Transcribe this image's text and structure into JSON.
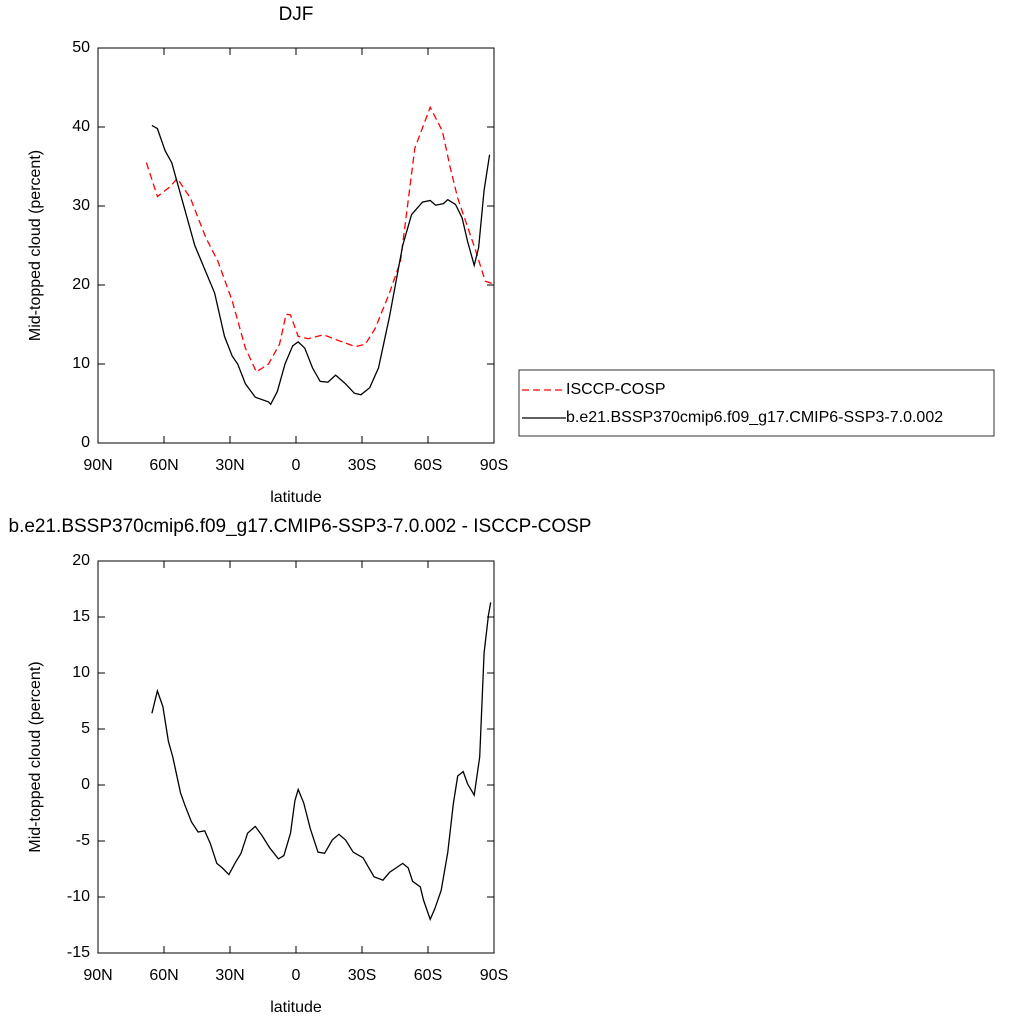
{
  "chart_data": [
    {
      "type": "line",
      "title": "DJF",
      "xlabel": "latitude",
      "ylabel": "Mid-topped cloud (percent)",
      "xlim": [
        90,
        -90
      ],
      "xticks": [
        {
          "value": 90,
          "label": "90N"
        },
        {
          "value": 60,
          "label": "60N"
        },
        {
          "value": 30,
          "label": "30N"
        },
        0,
        {
          "value": -30,
          "label": "30S"
        },
        {
          "value": -60,
          "label": "60S"
        },
        {
          "value": -90,
          "label": "90S"
        }
      ],
      "ylim": [
        0,
        50
      ],
      "yticks": [
        0,
        10,
        20,
        30,
        40,
        50
      ],
      "legend": "right",
      "series": [
        {
          "name": "ISCCP-COSP",
          "color": "#ff0000",
          "linestyle": "dashed",
          "x": [
            68,
            63,
            57,
            54,
            48,
            41,
            35.5,
            29,
            23,
            18,
            12.5,
            7.5,
            4.5,
            2.5,
            -1,
            -5.5,
            -12.5,
            -19,
            -27,
            -31.5,
            -36,
            -42.5,
            -47.5,
            -54,
            -61,
            -66.5,
            -70,
            -73.5,
            -81.5,
            -86,
            -89
          ],
          "values": [
            35.5,
            31.2,
            32.5,
            33.5,
            31,
            26,
            23,
            18,
            12,
            9,
            10,
            12.5,
            16.3,
            16.2,
            13.5,
            13.2,
            13.7,
            13,
            12.2,
            12.5,
            14.5,
            19,
            23,
            37.3,
            42.5,
            39.5,
            35,
            31,
            24.5,
            20.5,
            20.2
          ]
        },
        {
          "name": "b.e21.BSSP370cmip6.f09_g17.CMIP6-SSP3-7.0.002",
          "color": "#000000",
          "linestyle": "solid",
          "x": [
            65.5,
            63,
            59.5,
            56.5,
            52,
            46,
            41.5,
            37,
            32.5,
            29,
            26.5,
            23,
            18.5,
            12.5,
            11.5,
            8.5,
            5,
            1.5,
            -1,
            -4,
            -7.5,
            -11,
            -14.5,
            -18,
            -22.5,
            -26.5,
            -29.5,
            -33.5,
            -37.5,
            -42.5,
            -48.5,
            -52.5,
            -57.5,
            -61,
            -63.5,
            -67,
            -69,
            -72.5,
            -75.5,
            -78,
            -81,
            -83,
            -85.5,
            -88
          ],
          "values": [
            40.2,
            39.8,
            37,
            35.5,
            31,
            25,
            22,
            19,
            13.5,
            11,
            10,
            7.5,
            5.8,
            5.2,
            4.9,
            6.5,
            10,
            12.3,
            12.8,
            12,
            9.5,
            7.8,
            7.7,
            8.6,
            7.5,
            6.3,
            6.1,
            7,
            9.5,
            16,
            25,
            28.9,
            30.5,
            30.7,
            30.1,
            30.3,
            30.8,
            30.2,
            28.5,
            25.5,
            22.5,
            24.7,
            32,
            36.5
          ]
        }
      ]
    },
    {
      "type": "line",
      "title": "b.e21.BSSP370cmip6.f09_g17.CMIP6-SSP3-7.0.002 - ISCCP-COSP",
      "xlabel": "latitude",
      "ylabel": "Mid-topped cloud (percent)",
      "xlim": [
        90,
        -90
      ],
      "xticks": [
        {
          "value": 90,
          "label": "90N"
        },
        {
          "value": 60,
          "label": "60N"
        },
        {
          "value": 30,
          "label": "30N"
        },
        0,
        {
          "value": -30,
          "label": "30S"
        },
        {
          "value": -60,
          "label": "60S"
        },
        {
          "value": -90,
          "label": "90S"
        }
      ],
      "ylim": [
        -15,
        20
      ],
      "yticks": [
        -15,
        -10,
        -5,
        0,
        5,
        10,
        15,
        20
      ],
      "series": [
        {
          "color": "#000000",
          "linestyle": "solid",
          "x": [
            65.5,
            63,
            60.5,
            58,
            56,
            52.5,
            50.5,
            47.5,
            44.5,
            41.5,
            39,
            36,
            33.5,
            30.5,
            27.5,
            25,
            22,
            18.5,
            15.5,
            12,
            8,
            5.5,
            2.5,
            0.5,
            -1,
            -3.5,
            -6.5,
            -10,
            -13,
            -16.5,
            -19.5,
            -22.5,
            -26,
            -30.5,
            -32.5,
            -35.5,
            -39.5,
            -42.5,
            -45.5,
            -48.5,
            -51,
            -53,
            -56.5,
            -58,
            -61,
            -63,
            -66,
            -69,
            -71.5,
            -73.5,
            -76,
            -78,
            -81,
            -83.5,
            -85.5,
            -87.5,
            -88.5
          ],
          "values": [
            6.4,
            8.4,
            7,
            3.9,
            2.5,
            -0.7,
            -1.8,
            -3.3,
            -4.2,
            -4.1,
            -5.2,
            -7,
            -7.4,
            -8,
            -6.9,
            -6.1,
            -4.3,
            -3.7,
            -4.5,
            -5.6,
            -6.6,
            -6.3,
            -4.3,
            -1.4,
            -0.4,
            -1.6,
            -3.9,
            -6,
            -6.1,
            -4.9,
            -4.4,
            -4.9,
            -6,
            -6.5,
            -7.2,
            -8.2,
            -8.5,
            -7.8,
            -7.4,
            -7,
            -7.4,
            -8.6,
            -9.1,
            -10.3,
            -12,
            -11.1,
            -9.4,
            -6,
            -1.7,
            0.8,
            1.2,
            0.1,
            -0.9,
            2.5,
            11.8,
            15.2,
            16.3
          ]
        }
      ]
    }
  ]
}
